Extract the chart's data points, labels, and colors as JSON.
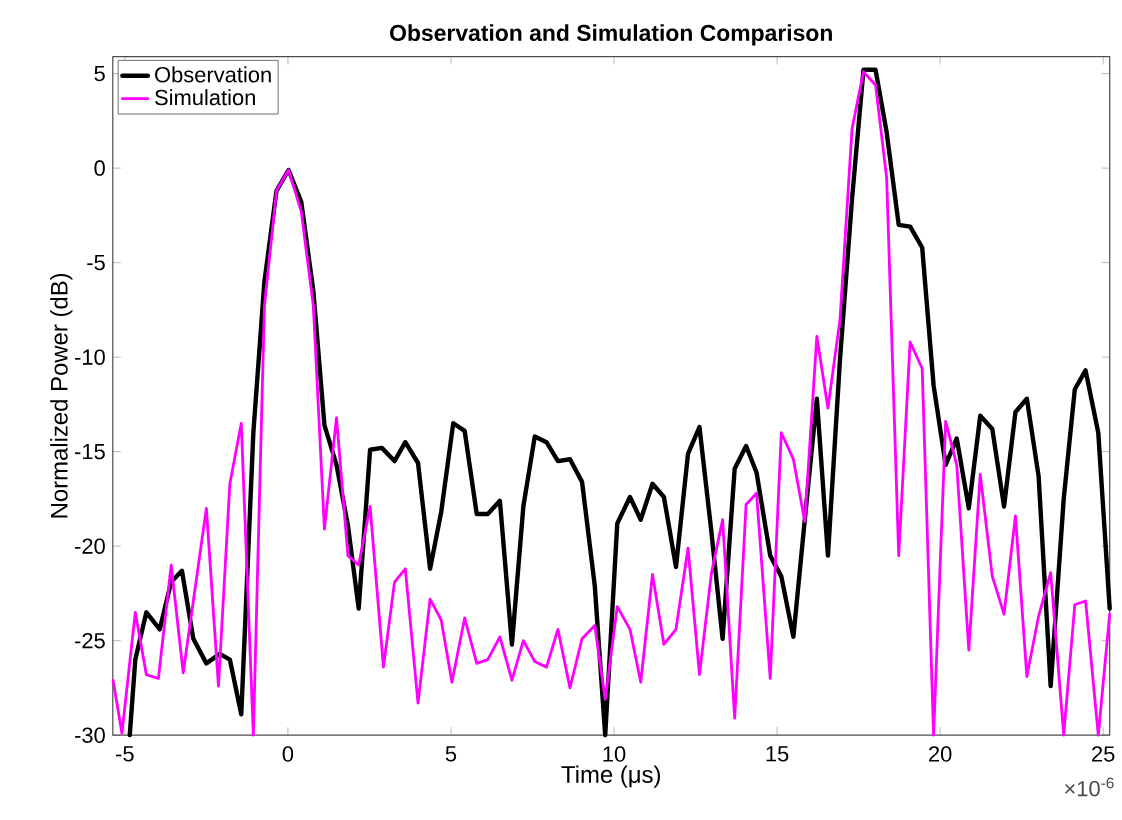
{
  "chart_data": {
    "type": "line",
    "title": "Observation and Simulation Comparison",
    "xlabel": "Time (μs)",
    "ylabel": "Normalized Power (dB)",
    "annotations": [
      "×10$^{-6}$"
    ],
    "xlim": [
      -5.37,
      25.2
    ],
    "ylim": [
      -30,
      5.9
    ],
    "xticks": [
      -5,
      0,
      5,
      10,
      15,
      20,
      25
    ],
    "yticks": [
      -30,
      -25,
      -20,
      -15,
      -10,
      -5,
      0,
      5
    ],
    "legend": "top left",
    "series": [
      {
        "name": "Observation",
        "color": "#000000",
        "x": [
          -4.85,
          -4.68,
          -4.34,
          -3.93,
          -3.58,
          -3.25,
          -2.9,
          -2.5,
          -2.09,
          -1.78,
          -1.43,
          -1.06,
          -0.72,
          -0.35,
          0.02,
          0.41,
          0.78,
          1.12,
          1.49,
          1.84,
          2.17,
          2.52,
          2.88,
          3.27,
          3.6,
          3.99,
          4.36,
          4.7,
          5.07,
          5.42,
          5.79,
          6.13,
          6.5,
          6.87,
          7.22,
          7.57,
          7.93,
          8.28,
          8.65,
          9.02,
          9.41,
          9.73,
          10.1,
          10.49,
          10.82,
          11.18,
          11.53,
          11.9,
          12.27,
          12.62,
          12.99,
          13.33,
          13.7,
          14.05,
          14.37,
          14.79,
          15.13,
          15.5,
          15.85,
          16.22,
          16.56,
          16.93,
          17.3,
          17.65,
          18.02,
          18.36,
          18.73,
          19.08,
          19.45,
          19.8,
          20.17,
          20.51,
          20.88,
          21.23,
          21.6,
          21.96,
          22.31,
          22.66,
          23.02,
          23.39,
          23.79,
          24.13,
          24.46,
          24.85,
          25.2
        ],
        "values": [
          -30,
          -26.0,
          -23.5,
          -24.4,
          -21.9,
          -21.3,
          -24.9,
          -26.2,
          -25.7,
          -26.0,
          -28.9,
          -14.0,
          -6.0,
          -1.2,
          -0.1,
          -1.8,
          -6.5,
          -13.6,
          -15.7,
          -18.9,
          -23.3,
          -14.9,
          -14.8,
          -15.5,
          -14.5,
          -15.6,
          -21.2,
          -18.2,
          -13.5,
          -13.9,
          -18.3,
          -18.3,
          -17.6,
          -25.2,
          -17.9,
          -14.2,
          -14.5,
          -15.5,
          -15.4,
          -16.6,
          -22.1,
          -30,
          -18.8,
          -17.4,
          -18.6,
          -16.7,
          -17.4,
          -21.1,
          -15.1,
          -13.7,
          -19.3,
          -24.9,
          -15.9,
          -14.7,
          -16.1,
          -20.5,
          -21.6,
          -24.8,
          -18.6,
          -12.2,
          -20.5,
          -10.1,
          -1.6,
          5.2,
          5.2,
          1.9,
          -3.0,
          -3.1,
          -4.2,
          -11.5,
          -15.7,
          -14.3,
          -18.0,
          -13.1,
          -13.8,
          -17.9,
          -12.9,
          -12.2,
          -16.3,
          -27.4,
          -17.5,
          -11.7,
          -10.7,
          -14.0,
          -23.3
        ]
      },
      {
        "name": "Simulation",
        "color": "#ff00ff",
        "x": [
          -5.36,
          -5.09,
          -4.68,
          -4.34,
          -3.97,
          -3.58,
          -3.21,
          -2.5,
          -2.13,
          -1.78,
          -1.43,
          -1.06,
          -0.72,
          -0.35,
          0.02,
          0.41,
          0.78,
          1.12,
          1.49,
          1.84,
          2.17,
          2.52,
          2.93,
          3.27,
          3.6,
          3.99,
          4.36,
          4.7,
          5.03,
          5.42,
          5.79,
          6.13,
          6.5,
          6.87,
          7.22,
          7.57,
          7.93,
          8.28,
          8.65,
          9.02,
          9.41,
          9.73,
          10.1,
          10.49,
          10.82,
          11.18,
          11.53,
          11.9,
          12.27,
          12.62,
          12.99,
          13.33,
          13.7,
          14.05,
          14.37,
          14.79,
          15.13,
          15.5,
          15.85,
          16.22,
          16.56,
          16.93,
          17.3,
          17.65,
          18.02,
          18.36,
          18.73,
          19.08,
          19.45,
          19.8,
          20.17,
          20.51,
          20.88,
          21.23,
          21.6,
          21.96,
          22.31,
          22.66,
          23.02,
          23.39,
          23.79,
          24.13,
          24.46,
          24.85,
          25.2
        ],
        "values": [
          -27.1,
          -29.9,
          -23.5,
          -26.8,
          -27.0,
          -21.0,
          -26.7,
          -18.0,
          -27.4,
          -16.7,
          -13.5,
          -30,
          -7.3,
          -1.2,
          -0.1,
          -2.3,
          -7.3,
          -19.1,
          -13.2,
          -20.5,
          -21.0,
          -17.9,
          -26.4,
          -21.9,
          -21.2,
          -28.3,
          -22.8,
          -23.9,
          -27.2,
          -23.8,
          -26.2,
          -26.0,
          -24.8,
          -27.1,
          -25.0,
          -26.1,
          -26.4,
          -24.4,
          -27.5,
          -24.9,
          -24.2,
          -28.1,
          -23.2,
          -24.4,
          -27.2,
          -21.5,
          -25.2,
          -24.4,
          -20.1,
          -26.8,
          -21.4,
          -18.6,
          -29.1,
          -17.8,
          -17.2,
          -27.0,
          -14.0,
          -15.4,
          -18.7,
          -8.9,
          -12.7,
          -8.0,
          2.1,
          5.1,
          4.4,
          -0.5,
          -20.5,
          -9.2,
          -10.6,
          -30,
          -13.4,
          -15.7,
          -25.5,
          -16.2,
          -21.6,
          -23.6,
          -18.4,
          -26.9,
          -23.7,
          -21.4,
          -30,
          -23.1,
          -22.9,
          -30,
          -23.6
        ]
      }
    ]
  }
}
